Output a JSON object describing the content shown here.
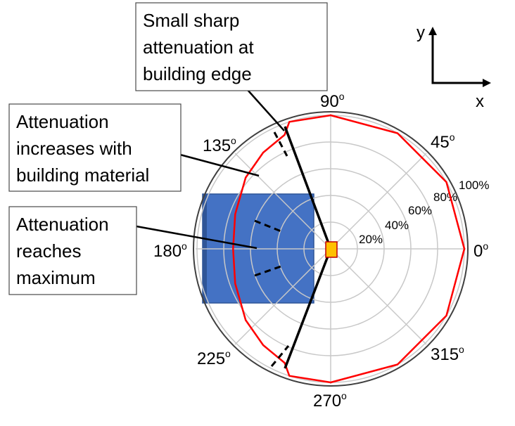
{
  "callouts": [
    {
      "id": "edge",
      "lines": [
        "Small sharp",
        "attenuation at",
        "building edge"
      ]
    },
    {
      "id": "material",
      "lines": [
        "Attenuation",
        "increases with",
        "building material"
      ]
    },
    {
      "id": "maximum",
      "lines": [
        "Attenuation",
        "reaches",
        "maximum"
      ]
    }
  ],
  "angle_labels": [
    {
      "value": "90",
      "sup": "o"
    },
    {
      "value": "45",
      "sup": "o"
    },
    {
      "value": "135",
      "sup": "o"
    },
    {
      "value": "180",
      "sup": "o"
    },
    {
      "value": "0",
      "sup": "o"
    },
    {
      "value": "225",
      "sup": "o"
    },
    {
      "value": "315",
      "sup": "o"
    },
    {
      "value": "270",
      "sup": "o"
    }
  ],
  "ring_labels": [
    "20%",
    "40%",
    "60%",
    "80%",
    "100%"
  ],
  "axes": {
    "x_label": "x",
    "y_label": "y"
  },
  "colors": {
    "pattern": "#ff0000",
    "building": "#4472c4",
    "building_edge": "#2f5597",
    "source": "#ffc000",
    "source_edge": "#c00000",
    "grid": "#c8c8c8",
    "outer_circle": "#404040",
    "wedge": "#000000"
  },
  "chart_data": {
    "type": "polar",
    "title": "",
    "radial_ticks": [
      20,
      40,
      60,
      80,
      100
    ],
    "radial_tick_unit": "%",
    "angular_ticks_deg": [
      0,
      45,
      90,
      135,
      180,
      225,
      270,
      315
    ],
    "series": [
      {
        "points": [
          {
            "angle": 0,
            "r": 100
          },
          {
            "angle": 30,
            "r": 100
          },
          {
            "angle": 60,
            "r": 100
          },
          {
            "angle": 90,
            "r": 100
          },
          {
            "angle": 108,
            "r": 100
          },
          {
            "angle": 112,
            "r": 92
          },
          {
            "angle": 125,
            "r": 88
          },
          {
            "angle": 140,
            "r": 83
          },
          {
            "angle": 160,
            "r": 76
          },
          {
            "angle": 180,
            "r": 73
          },
          {
            "angle": 200,
            "r": 76
          },
          {
            "angle": 220,
            "r": 83
          },
          {
            "angle": 235,
            "r": 88
          },
          {
            "angle": 248,
            "r": 92
          },
          {
            "angle": 252,
            "r": 100
          },
          {
            "angle": 270,
            "r": 100
          },
          {
            "angle": 300,
            "r": 100
          },
          {
            "angle": 330,
            "r": 100
          }
        ]
      }
    ]
  }
}
